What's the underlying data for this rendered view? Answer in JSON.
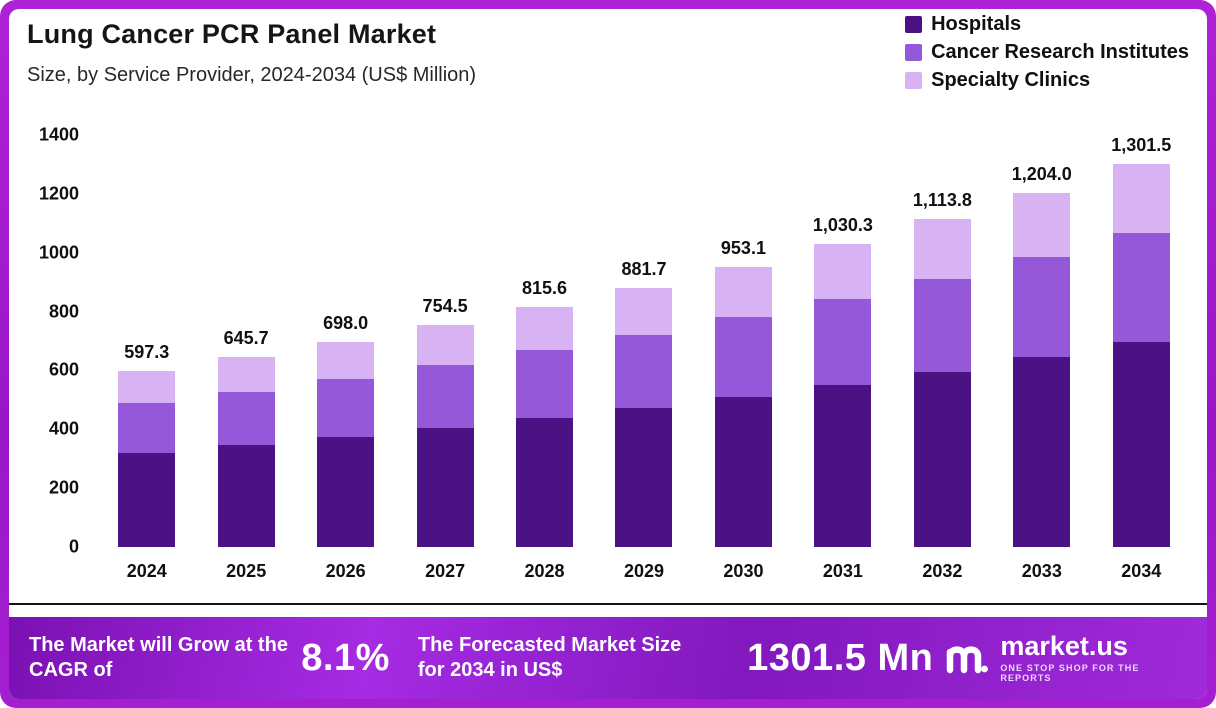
{
  "header": {
    "title": "Lung Cancer PCR Panel Market",
    "subtitle": "Size, by Service Provider, 2024-2034 (US$ Million)"
  },
  "chart_data": {
    "type": "bar",
    "stacked": true,
    "title": "Lung Cancer PCR Panel Market Size, by Service Provider, 2024-2034 (US$ Million)",
    "categories": [
      "2024",
      "2025",
      "2026",
      "2027",
      "2028",
      "2029",
      "2030",
      "2031",
      "2032",
      "2033",
      "2034"
    ],
    "series": [
      {
        "name": "Hospitals",
        "color": "#4b1284",
        "values": [
          320,
          345,
          374,
          404,
          437,
          472,
          510,
          551,
          596,
          644,
          697
        ]
      },
      {
        "name": "Cancer Research Institutes",
        "color": "#9458d8",
        "values": [
          170,
          183,
          198,
          214,
          231,
          250,
          270,
          292,
          316,
          342,
          370
        ]
      },
      {
        "name": "Specialty Clinics",
        "color": "#d7b3f4",
        "values": [
          107.3,
          117.7,
          126.0,
          136.5,
          147.6,
          159.7,
          173.1,
          187.3,
          201.8,
          218.0,
          234.5
        ]
      }
    ],
    "totals": [
      597.3,
      645.7,
      698.0,
      754.5,
      815.6,
      881.7,
      953.1,
      1030.3,
      1113.8,
      1204.0,
      1301.5
    ],
    "total_labels": [
      "597.3",
      "645.7",
      "698.0",
      "754.5",
      "815.6",
      "881.7",
      "953.1",
      "1,030.3",
      "1,113.8",
      "1,204.0",
      "1,301.5"
    ],
    "ylim": [
      0,
      1400
    ],
    "yticks": [
      0,
      200,
      400,
      600,
      800,
      1000,
      1200,
      1400
    ],
    "grid": false,
    "legend_position": "top-right"
  },
  "banner": {
    "cagr_text": "The Market will Grow at the CAGR of",
    "cagr_value": "8.1%",
    "forecast_text": "The Forecasted Market Size for 2034 in US$",
    "forecast_value": "1301.5 Mn",
    "brand_name": "market.us",
    "brand_tagline": "ONE STOP SHOP FOR THE REPORTS"
  }
}
